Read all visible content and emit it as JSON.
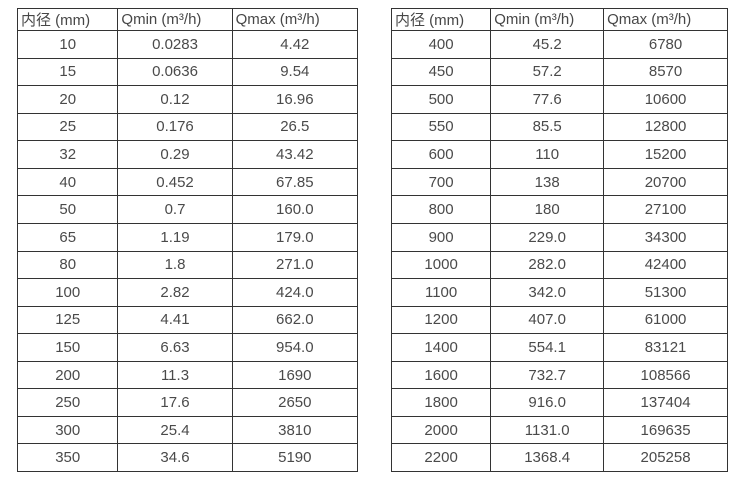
{
  "colors": {
    "background": "#ffffff",
    "border": "#333333",
    "text": "#4a4a4a"
  },
  "tables": [
    {
      "name": "flow-rate-table-small-diameters",
      "headers": [
        "内径 (mm)",
        "Qmin (m³/h)",
        "Qmax (m³/h)"
      ],
      "rows": [
        [
          "10",
          "0.0283",
          "4.42"
        ],
        [
          "15",
          "0.0636",
          "9.54"
        ],
        [
          "20",
          "0.12",
          "16.96"
        ],
        [
          "25",
          "0.176",
          "26.5"
        ],
        [
          "32",
          "0.29",
          "43.42"
        ],
        [
          "40",
          "0.452",
          "67.85"
        ],
        [
          "50",
          "0.7",
          "160.0"
        ],
        [
          "65",
          "1.19",
          "179.0"
        ],
        [
          "80",
          "1.8",
          "271.0"
        ],
        [
          "100",
          "2.82",
          "424.0"
        ],
        [
          "125",
          "4.41",
          "662.0"
        ],
        [
          "150",
          "6.63",
          "954.0"
        ],
        [
          "200",
          "11.3",
          "1690"
        ],
        [
          "250",
          "17.6",
          "2650"
        ],
        [
          "300",
          "25.4",
          "3810"
        ],
        [
          "350",
          "34.6",
          "5190"
        ]
      ]
    },
    {
      "name": "flow-rate-table-large-diameters",
      "headers": [
        "内径 (mm)",
        "Qmin (m³/h)",
        "Qmax (m³/h)"
      ],
      "rows": [
        [
          "400",
          "45.2",
          "6780"
        ],
        [
          "450",
          "57.2",
          "8570"
        ],
        [
          "500",
          "77.6",
          "10600"
        ],
        [
          "550",
          "85.5",
          "12800"
        ],
        [
          "600",
          "110",
          "15200"
        ],
        [
          "700",
          "138",
          "20700"
        ],
        [
          "800",
          "180",
          "27100"
        ],
        [
          "900",
          "229.0",
          "34300"
        ],
        [
          "1000",
          "282.0",
          "42400"
        ],
        [
          "1100",
          "342.0",
          "51300"
        ],
        [
          "1200",
          "407.0",
          "61000"
        ],
        [
          "1400",
          "554.1",
          "83121"
        ],
        [
          "1600",
          "732.7",
          "108566"
        ],
        [
          "1800",
          "916.0",
          "137404"
        ],
        [
          "2000",
          "1131.0",
          "169635"
        ],
        [
          "2200",
          "1368.4",
          "205258"
        ]
      ]
    }
  ]
}
